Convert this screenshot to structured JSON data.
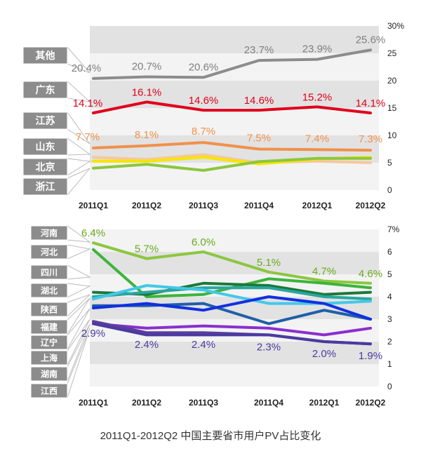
{
  "title": "2011Q1-2012Q2 中国主要省市用户PV占比变化",
  "colors": {
    "band_dark": "#e2e2e2",
    "band_light": "#f3f3f3",
    "label_box": "#8c8c8c",
    "label_text": "#ffffff",
    "axis_text": "#222222"
  },
  "chart_data": [
    {
      "type": "line",
      "categories": [
        "2011Q1",
        "2011Q2",
        "2011Q3",
        "2011Q4",
        "2012Q1",
        "2012Q2"
      ],
      "y_ticks": [
        "0",
        "5",
        "10",
        "15",
        "20",
        "25",
        "30%"
      ],
      "ylim": [
        0,
        30
      ],
      "grid": "alternating bands",
      "series": [
        {
          "name": "其他",
          "color": "#8c8c8c",
          "values": [
            20.4,
            20.7,
            20.6,
            23.7,
            23.9,
            25.6
          ],
          "labels": [
            "20.4%",
            "20.7%",
            "20.6%",
            "23.7%",
            "23.9%",
            "25.6%"
          ],
          "label_color": "#7f7f7f"
        },
        {
          "name": "广东",
          "color": "#e0001b",
          "values": [
            14.1,
            16.1,
            14.6,
            14.6,
            15.2,
            14.1
          ],
          "labels": [
            "14.1%",
            "16.1%",
            "14.6%",
            "14.6%",
            "15.2%",
            "14.1%"
          ],
          "label_color": "#e0001b"
        },
        {
          "name": "江苏",
          "color": "#f0914b",
          "values": [
            7.7,
            8.1,
            8.7,
            7.5,
            7.4,
            7.3
          ],
          "labels": [
            "7.7%",
            "8.1%",
            "8.7%",
            "7.5%",
            "7.4%",
            "7.3%"
          ],
          "label_color": "#f0914b"
        },
        {
          "name": "山东",
          "color": "#f6c89a",
          "values": [
            6.0,
            5.6,
            6.5,
            5.0,
            5.3,
            5.0
          ],
          "labels": [],
          "label_color": ""
        },
        {
          "name": "北京",
          "color": "#f5e600",
          "values": [
            5.3,
            5.3,
            6.0,
            4.8,
            5.7,
            6.0
          ],
          "labels": [],
          "label_color": ""
        },
        {
          "name": "浙江",
          "color": "#8cc63f",
          "values": [
            4.0,
            4.7,
            3.6,
            5.2,
            5.8,
            5.8
          ],
          "labels": [],
          "label_color": ""
        }
      ]
    },
    {
      "type": "line",
      "categories": [
        "2011Q1",
        "2011Q2",
        "2011Q3",
        "2011Q4",
        "2012Q1",
        "2012Q2"
      ],
      "y_ticks": [
        "0",
        "1",
        "2",
        "3",
        "4",
        "5",
        "6",
        "7%"
      ],
      "ylim": [
        0,
        7
      ],
      "grid": "alternating bands",
      "series": [
        {
          "name": "河南",
          "color": "#8cc63f",
          "values": [
            6.4,
            5.7,
            6.0,
            5.1,
            4.7,
            4.6
          ],
          "labels": [
            "6.4%",
            "5.7%",
            "6.0%",
            "5.1%",
            "4.7%",
            "4.6%"
          ],
          "label_color": "#6aab1e"
        },
        {
          "name": "河北",
          "color": "#3cb43c",
          "values": [
            6.1,
            4.0,
            4.1,
            4.8,
            4.6,
            4.4
          ],
          "labels": [],
          "label_color": ""
        },
        {
          "name": "四川",
          "color": "#1a7a3a",
          "values": [
            4.2,
            4.1,
            4.6,
            4.5,
            4.1,
            4.2
          ],
          "labels": [],
          "label_color": ""
        },
        {
          "name": "湖北",
          "color": "#2aa6a0",
          "values": [
            4.0,
            4.2,
            4.4,
            4.4,
            4.0,
            3.9
          ],
          "labels": [],
          "label_color": ""
        },
        {
          "name": "陕西",
          "color": "#44c8e8",
          "values": [
            3.9,
            4.5,
            4.3,
            3.7,
            3.7,
            3.8
          ],
          "labels": [],
          "label_color": ""
        },
        {
          "name": "福建",
          "color": "#1f5fa8",
          "values": [
            3.6,
            3.6,
            3.7,
            2.8,
            3.4,
            3.0
          ],
          "labels": [],
          "label_color": ""
        },
        {
          "name": "辽宁",
          "color": "#1030e0",
          "values": [
            3.5,
            3.7,
            3.4,
            4.0,
            3.7,
            3.0
          ],
          "labels": [],
          "label_color": ""
        },
        {
          "name": "上海",
          "color": "#8a2fcf",
          "values": [
            2.8,
            2.6,
            2.7,
            2.6,
            2.3,
            2.6
          ],
          "labels": [],
          "label_color": ""
        },
        {
          "name": "湖南",
          "color": "#5a3e9c",
          "values": [
            2.9,
            2.4,
            2.4,
            2.3,
            2.0,
            1.9
          ],
          "labels": [
            "2.9%",
            "2.4%",
            "2.4%",
            "2.3%",
            "2.0%",
            "1.9%"
          ],
          "label_color": "#4b3aa0"
        },
        {
          "name": "江西",
          "color": "#4b3aa0",
          "values": [
            2.8,
            2.3,
            2.3,
            2.3,
            2.0,
            1.9
          ],
          "labels": [],
          "label_color": ""
        }
      ]
    }
  ]
}
